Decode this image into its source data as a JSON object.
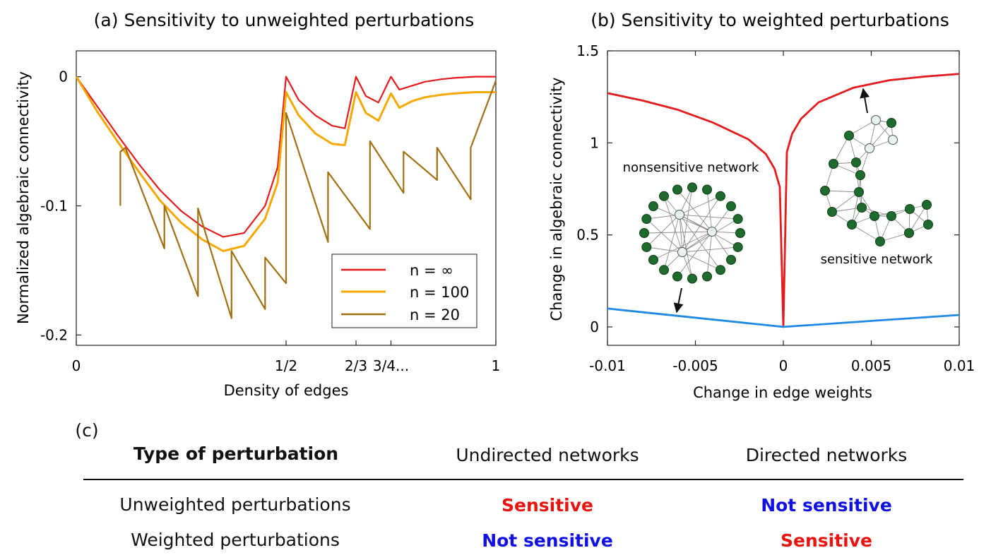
{
  "colors": {
    "red": "#e41a1c",
    "orange": "#f5a800",
    "brown": "#a07010",
    "blue": "#1e88e5",
    "node_dark": "#1f6b2e",
    "node_light": "#e8f4f0",
    "sensitive": "#e8140f",
    "not_sensitive": "#1010e6"
  },
  "panel_a": {
    "title": "(a) Sensitivity to unweighted perturbations",
    "xlabel": "Density of edges",
    "ylabel": "Normalized algebraic connectivity",
    "xticks": [
      "0",
      "1/2",
      "2/3",
      "3/4...",
      "1"
    ],
    "yticks": [
      "0",
      "-0.1",
      "-0.2"
    ],
    "legend": {
      "placement": "bottom-right",
      "entries": [
        "n = ∞",
        "n = 100",
        "n = 20"
      ]
    }
  },
  "panel_b": {
    "title": "(b) Sensitivity to weighted perturbations",
    "xlabel": "Change in edge weights",
    "ylabel": "Change in algebraic connectivity",
    "xticks": [
      "-0.01",
      "-0.005",
      "0",
      "0.005",
      "0.01"
    ],
    "yticks": [
      "0",
      "0.5",
      "1",
      "1.5"
    ],
    "annotations": {
      "nonsensitive": "nonsensitive network",
      "sensitive": "sensitive network"
    }
  },
  "panel_c": {
    "label": "(c)",
    "headers": [
      "Type of perturbation",
      "Undirected networks",
      "Directed networks"
    ],
    "rows": [
      {
        "type": "Unweighted perturbations",
        "undirected": "Sensitive",
        "directed": "Not sensitive"
      },
      {
        "type": "Weighted perturbations",
        "undirected": "Not sensitive",
        "directed": "Sensitive"
      }
    ]
  },
  "chart_data": [
    {
      "type": "line",
      "title": "(a) Sensitivity to unweighted perturbations",
      "xlabel": "Density of edges",
      "ylabel": "Normalized algebraic connectivity",
      "xlim": [
        0,
        1
      ],
      "ylim": [
        -0.208,
        0.02
      ],
      "x_tick_positions": [
        0,
        0.5,
        0.6667,
        0.75,
        1
      ],
      "y_tick_values": [
        0,
        -0.1,
        -0.2
      ],
      "series": [
        {
          "name": "n = ∞",
          "color": "#e41a1c",
          "x": [
            0,
            0.05,
            0.1,
            0.15,
            0.2,
            0.25,
            0.3,
            0.35,
            0.4,
            0.45,
            0.48,
            0.5,
            0.53,
            0.57,
            0.61,
            0.64,
            0.6667,
            0.69,
            0.72,
            0.75,
            0.77,
            0.8,
            0.83,
            0.87,
            0.9,
            0.95,
            1.0
          ],
          "y": [
            0,
            -0.023,
            -0.046,
            -0.068,
            -0.088,
            -0.104,
            -0.116,
            -0.124,
            -0.121,
            -0.1,
            -0.07,
            0,
            -0.018,
            -0.03,
            -0.038,
            -0.04,
            0,
            -0.015,
            -0.02,
            0,
            -0.01,
            -0.007,
            -0.004,
            -0.002,
            -0.001,
            0,
            0
          ]
        },
        {
          "name": "n = 100",
          "color": "#f5a800",
          "x": [
            0,
            0.05,
            0.1,
            0.15,
            0.2,
            0.25,
            0.3,
            0.35,
            0.4,
            0.45,
            0.48,
            0.5,
            0.53,
            0.57,
            0.61,
            0.64,
            0.6667,
            0.69,
            0.72,
            0.75,
            0.77,
            0.8,
            0.83,
            0.87,
            0.9,
            0.95,
            1.0
          ],
          "y": [
            0,
            -0.027,
            -0.051,
            -0.074,
            -0.096,
            -0.113,
            -0.126,
            -0.135,
            -0.131,
            -0.11,
            -0.082,
            -0.012,
            -0.03,
            -0.044,
            -0.052,
            -0.053,
            -0.012,
            -0.028,
            -0.034,
            -0.013,
            -0.024,
            -0.019,
            -0.016,
            -0.014,
            -0.013,
            -0.012,
            -0.012
          ]
        },
        {
          "name": "n = 20",
          "color": "#a07010",
          "x": [
            0.105,
            0.105,
            0.117,
            0.21,
            0.21,
            0.29,
            0.29,
            0.37,
            0.37,
            0.45,
            0.45,
            0.5,
            0.5,
            0.6,
            0.6,
            0.7,
            0.7,
            0.78,
            0.78,
            0.86,
            0.86,
            0.94,
            0.94,
            1.0
          ],
          "y": [
            -0.1,
            -0.058,
            -0.055,
            -0.133,
            -0.1,
            -0.17,
            -0.102,
            -0.187,
            -0.135,
            -0.18,
            -0.14,
            -0.16,
            -0.028,
            -0.128,
            -0.074,
            -0.118,
            -0.05,
            -0.09,
            -0.058,
            -0.08,
            -0.055,
            -0.095,
            -0.055,
            -0.003
          ]
        }
      ]
    },
    {
      "type": "line",
      "title": "(b) Sensitivity to weighted perturbations",
      "xlabel": "Change in edge weights",
      "ylabel": "Change in algebraic connectivity",
      "xlim": [
        -0.01,
        0.01
      ],
      "ylim": [
        -0.1,
        1.5
      ],
      "x_tick_values": [
        -0.01,
        -0.005,
        0,
        0.005,
        0.01
      ],
      "y_tick_values": [
        0,
        0.5,
        1,
        1.5
      ],
      "series": [
        {
          "color": "#e41a1c",
          "x": [
            -0.01,
            -0.008,
            -0.006,
            -0.004,
            -0.002,
            -0.001,
            -0.0005,
            -0.0002,
            0,
            0.0002,
            0.0005,
            0.001,
            0.002,
            0.004,
            0.006,
            0.008,
            0.01
          ],
          "y": [
            1.27,
            1.23,
            1.18,
            1.11,
            1.02,
            0.94,
            0.86,
            0.76,
            0,
            0.95,
            1.05,
            1.13,
            1.22,
            1.3,
            1.34,
            1.36,
            1.375
          ]
        },
        {
          "color": "#1e88e5",
          "x": [
            -0.01,
            0,
            0.01
          ],
          "y": [
            0.1,
            0.0,
            0.065
          ]
        }
      ]
    }
  ]
}
